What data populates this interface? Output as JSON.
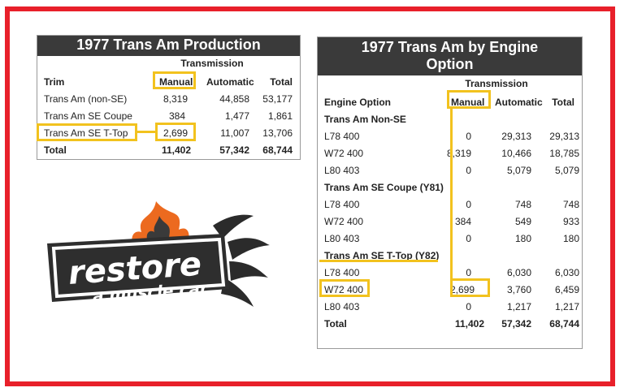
{
  "colors": {
    "frame": "#e8202a",
    "highlight": "#f2c21e",
    "title_bg": "#3a3a3a"
  },
  "production": {
    "title": "1977 Trans Am Production",
    "group_header": "Transmission",
    "headers": [
      "Trim",
      "Manual",
      "Automatic",
      "Total"
    ],
    "rows": [
      [
        "Trans Am (non-SE)",
        "8,319",
        "44,858",
        "53,177"
      ],
      [
        "Trans Am SE Coupe",
        "384",
        "1,477",
        "1,861"
      ],
      [
        "Trans Am SE T-Top",
        "2,699",
        "11,007",
        "13,706"
      ]
    ],
    "total": [
      "Total",
      "11,402",
      "57,342",
      "68,744"
    ]
  },
  "engine": {
    "title_line1": "1977 Trans Am by Engine",
    "title_line2": "Option",
    "group_header": "Transmission",
    "headers": [
      "Engine Option",
      "Manual",
      "Automatic",
      "Total"
    ],
    "sections": [
      {
        "name": "Trans Am Non-SE",
        "rows": [
          [
            "L78 400",
            "0",
            "29,313",
            "29,313"
          ],
          [
            "W72 400",
            "8,319",
            "10,466",
            "18,785"
          ],
          [
            "L80 403",
            "0",
            "5,079",
            "5,079"
          ]
        ]
      },
      {
        "name": "Trans Am SE Coupe (Y81)",
        "rows": [
          [
            "L78 400",
            "0",
            "748",
            "748"
          ],
          [
            "W72 400",
            "384",
            "549",
            "933"
          ],
          [
            "L80 403",
            "0",
            "180",
            "180"
          ]
        ]
      },
      {
        "name": "Trans Am SE T-Top (Y82)",
        "rows": [
          [
            "L78 400",
            "0",
            "6,030",
            "6,030"
          ],
          [
            "W72 400",
            "2,699",
            "3,760",
            "6,459"
          ],
          [
            "L80 403",
            "0",
            "1,217",
            "1,217"
          ]
        ]
      }
    ],
    "total": [
      "Total",
      "11,402",
      "57,342",
      "68,744"
    ]
  },
  "logo": {
    "line1": "restore",
    "line2": "a muscle car"
  }
}
